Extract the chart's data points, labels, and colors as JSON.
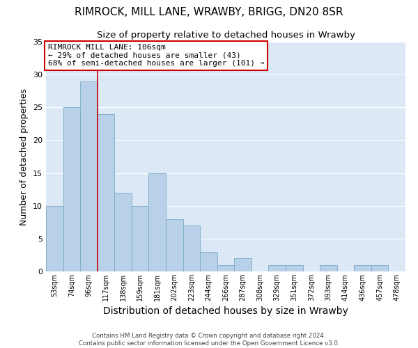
{
  "title": "RIMROCK, MILL LANE, WRAWBY, BRIGG, DN20 8SR",
  "subtitle": "Size of property relative to detached houses in Wrawby",
  "xlabel": "Distribution of detached houses by size in Wrawby",
  "ylabel": "Number of detached properties",
  "bar_labels": [
    "53sqm",
    "74sqm",
    "96sqm",
    "117sqm",
    "138sqm",
    "159sqm",
    "181sqm",
    "202sqm",
    "223sqm",
    "244sqm",
    "266sqm",
    "287sqm",
    "308sqm",
    "329sqm",
    "351sqm",
    "372sqm",
    "393sqm",
    "414sqm",
    "436sqm",
    "457sqm",
    "478sqm"
  ],
  "bar_values": [
    10,
    25,
    29,
    24,
    12,
    10,
    15,
    8,
    7,
    3,
    1,
    2,
    0,
    1,
    1,
    0,
    1,
    0,
    1,
    1,
    0
  ],
  "bar_color": "#b8d0e8",
  "bar_edge_color": "#7aaac8",
  "vline_color": "#cc0000",
  "annotation_text": "RIMROCK MILL LANE: 106sqm\n← 29% of detached houses are smaller (43)\n68% of semi-detached houses are larger (101) →",
  "annotation_box_color": "#ffffff",
  "annotation_border_color": "#cc0000",
  "ylim": [
    0,
    35
  ],
  "yticks": [
    0,
    5,
    10,
    15,
    20,
    25,
    30,
    35
  ],
  "background_color": "#dce8f5",
  "footer_line1": "Contains HM Land Registry data © Crown copyright and database right 2024.",
  "footer_line2": "Contains public sector information licensed under the Open Government Licence v3.0.",
  "title_fontsize": 11,
  "subtitle_fontsize": 9.5,
  "xlabel_fontsize": 10,
  "ylabel_fontsize": 9,
  "vline_x_bar_index": 2,
  "vline_x_offset": 0.5
}
